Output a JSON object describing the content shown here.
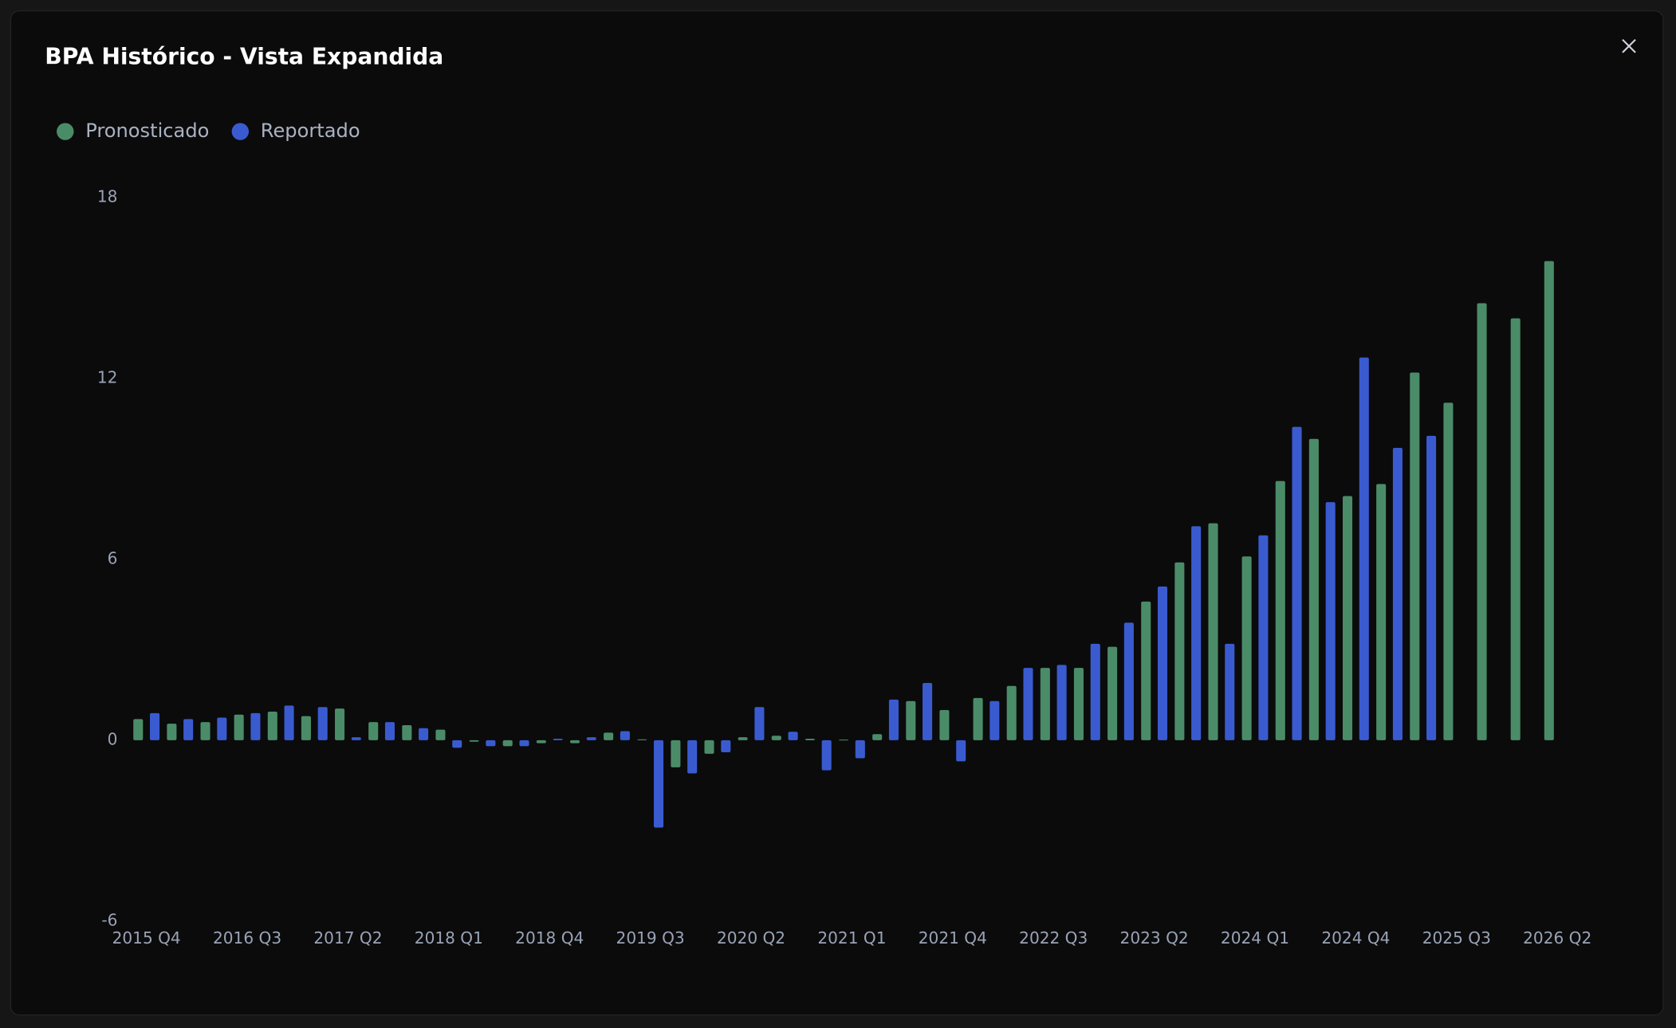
{
  "chart_data": {
    "type": "bar",
    "title": "BPA Histórico - Vista Expandida",
    "categories": [
      "2015 Q4",
      null,
      null,
      "2016 Q3",
      null,
      null,
      "2017 Q2",
      null,
      null,
      "2018 Q1",
      null,
      null,
      "2018 Q4",
      null,
      null,
      "2019 Q3",
      null,
      null,
      "2020 Q2",
      null,
      null,
      "2021 Q1",
      null,
      null,
      "2021 Q4",
      null,
      null,
      "2022 Q3",
      null,
      null,
      "2023 Q2",
      null,
      null,
      "2024 Q1",
      null,
      null,
      "2024 Q4",
      null,
      null,
      "2025 Q3",
      null,
      null,
      "2026 Q2"
    ],
    "series": [
      {
        "name": "Pronosticado",
        "color": "#4b8c68",
        "values": [
          0.7,
          0.55,
          0.6,
          0.85,
          0.95,
          0.8,
          1.05,
          0.6,
          0.5,
          0.35,
          -0.05,
          -0.2,
          -0.1,
          -0.1,
          0.25,
          0.03,
          -0.9,
          -0.45,
          0.1,
          0.15,
          0.05,
          0.02,
          0.2,
          1.3,
          1.0,
          1.4,
          1.8,
          2.4,
          2.4,
          3.1,
          4.6,
          5.9,
          7.2,
          6.1,
          8.6,
          10.0,
          8.1,
          8.5,
          12.2,
          11.2,
          14.5,
          14.0,
          15.9
        ]
      },
      {
        "name": "Reportado",
        "color": "#3a5bd0",
        "values": [
          0.9,
          0.7,
          0.75,
          0.9,
          1.15,
          1.1,
          0.1,
          0.6,
          0.4,
          -0.25,
          -0.2,
          -0.2,
          0.05,
          0.1,
          0.3,
          -2.9,
          -1.1,
          -0.4,
          1.1,
          0.28,
          -1.0,
          -0.6,
          1.35,
          1.9,
          -0.7,
          1.3,
          2.4,
          2.5,
          3.2,
          3.9,
          5.1,
          7.1,
          3.2,
          6.8,
          10.4,
          7.9,
          12.7,
          9.7,
          10.1,
          null,
          null,
          null,
          null
        ]
      }
    ],
    "ylim": [
      -6,
      18
    ],
    "yticks": [
      -6,
      0,
      6,
      12,
      18
    ]
  }
}
